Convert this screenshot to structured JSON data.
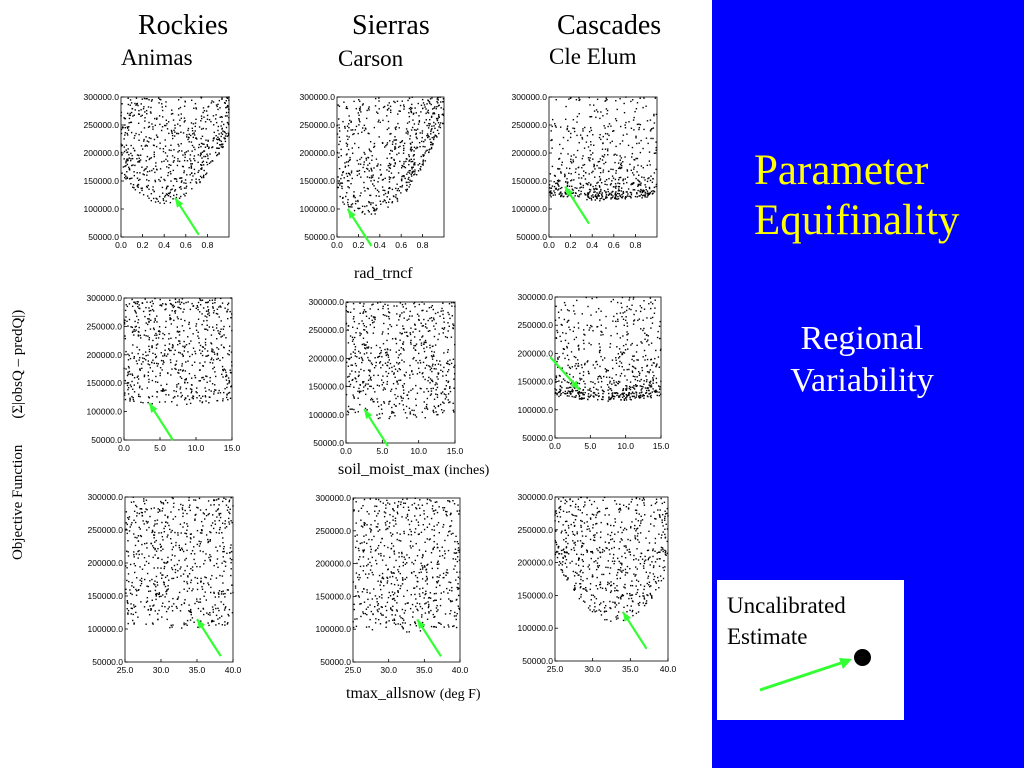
{
  "columns": [
    {
      "region": "Rockies",
      "basin": "Animas"
    },
    {
      "region": "Sierras",
      "basin": "Carson"
    },
    {
      "region": "Cascades",
      "basin": "Cle Elum"
    }
  ],
  "y_axis_label": {
    "text": "Objective Function",
    "formula": "(Σ|obsQ – predQ|)"
  },
  "row_labels": [
    {
      "param": "rad_trncf",
      "unit": ""
    },
    {
      "param": "soil_moist_max",
      "unit": "(inches)"
    },
    {
      "param": "tmax_allsnow",
      "unit": "(deg F)"
    }
  ],
  "side_panel": {
    "title_line1": "Parameter",
    "title_line2": "Equifinality",
    "subtitle_line1": "Regional",
    "subtitle_line2": "Variability",
    "background_color": "#0000ff",
    "title_color": "#ffff00"
  },
  "legend": {
    "line1": "Uncalibrated",
    "line2": "Estimate",
    "arrow_color": "#33ff33"
  },
  "chart_data": {
    "type": "scatter",
    "y_ticks": [
      "50000.0",
      "100000.0",
      "150000.0",
      "200000.0",
      "250000.0",
      "300000.0"
    ],
    "y_values": [
      50000,
      100000,
      150000,
      200000,
      250000,
      300000
    ],
    "ylim": [
      50000,
      300000
    ],
    "rows": [
      {
        "param": "rad_trncf",
        "xlim": [
          0.0,
          1.0
        ],
        "x_ticks": [
          "0.0",
          "0.2",
          "0.4",
          "0.6",
          "0.8"
        ],
        "x_values": [
          0,
          0.2,
          0.4,
          0.6,
          0.8
        ],
        "panels": [
          {
            "basin": "Animas",
            "shape": "valley",
            "min_x": 0.4,
            "min_y": 110000,
            "uncalibrated": {
              "x": 0.5,
              "y": 120000
            }
          },
          {
            "basin": "Carson",
            "shape": "valley",
            "min_x": 0.3,
            "min_y": 90000,
            "uncalibrated": {
              "x": 0.1,
              "y": 100000
            }
          },
          {
            "basin": "Cle Elum",
            "shape": "floor",
            "min_x": 0.5,
            "min_y": 120000,
            "uncalibrated": {
              "x": 0.15,
              "y": 140000
            }
          }
        ]
      },
      {
        "param": "soil_moist_max",
        "xlim": [
          0.0,
          15.0
        ],
        "x_ticks": [
          "0.0",
          "5.0",
          "10.0",
          "15.0"
        ],
        "x_values": [
          0,
          5,
          10,
          15
        ],
        "panels": [
          {
            "basin": "Animas",
            "shape": "flat",
            "min_x": 7.5,
            "min_y": 110000,
            "uncalibrated": {
              "x": 3.5,
              "y": 115000
            }
          },
          {
            "basin": "Carson",
            "shape": "flat",
            "min_x": 7.5,
            "min_y": 90000,
            "uncalibrated": {
              "x": 2.5,
              "y": 110000
            }
          },
          {
            "basin": "Cle Elum",
            "shape": "floor",
            "min_x": 7.5,
            "min_y": 120000,
            "uncalibrated": {
              "x": 3.5,
              "y": 135000
            }
          }
        ]
      },
      {
        "param": "tmax_allsnow",
        "xlim": [
          25.0,
          40.0
        ],
        "x_ticks": [
          "25.0",
          "30.0",
          "35.0",
          "40.0"
        ],
        "x_values": [
          25,
          30,
          35,
          40
        ],
        "panels": [
          {
            "basin": "Animas",
            "shape": "flat",
            "min_x": 33,
            "min_y": 100000,
            "uncalibrated": {
              "x": 35,
              "y": 115000
            }
          },
          {
            "basin": "Carson",
            "shape": "flat",
            "min_x": 32,
            "min_y": 95000,
            "uncalibrated": {
              "x": 34,
              "y": 115000
            }
          },
          {
            "basin": "Cle Elum",
            "shape": "valley",
            "min_x": 33,
            "min_y": 110000,
            "uncalibrated": {
              "x": 34,
              "y": 125000
            }
          }
        ]
      }
    ]
  }
}
